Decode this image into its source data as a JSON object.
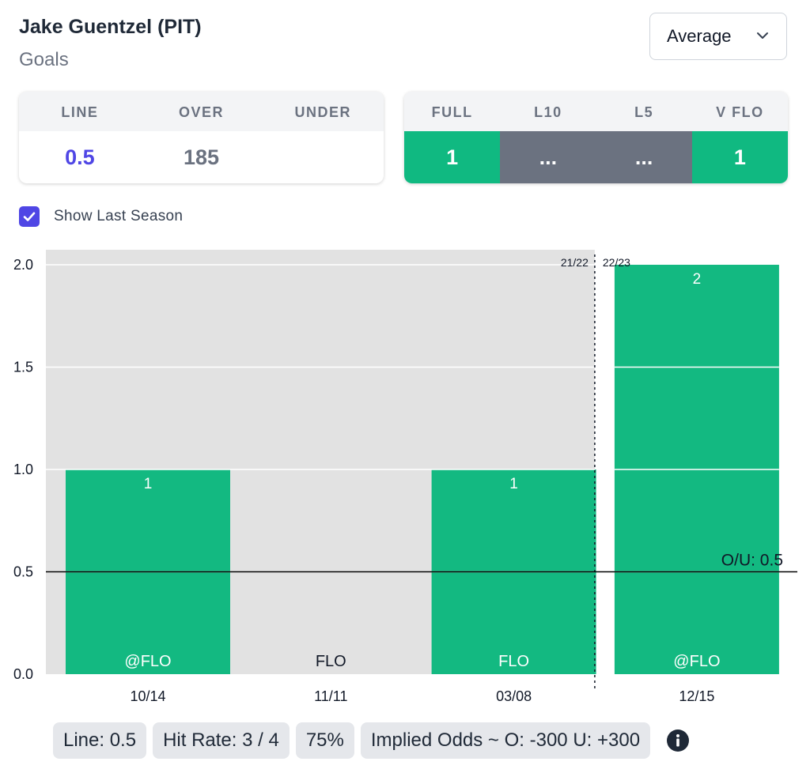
{
  "header": {
    "player": "Jake Guentzel (PIT)",
    "stat": "Goals"
  },
  "select": {
    "value": "Average",
    "icon": "chevron-down-icon"
  },
  "line_card": {
    "headers": [
      "LINE",
      "OVER",
      "UNDER"
    ],
    "values": {
      "line": "0.5",
      "over": "185",
      "under": ""
    },
    "colors": {
      "line": "#4f46e5",
      "over": "#10b981",
      "under": "#ef4444"
    }
  },
  "hit_card": {
    "headers": [
      "FULL",
      "L10",
      "L5",
      "V FLO"
    ],
    "values": [
      "1",
      "...",
      "...",
      "1"
    ],
    "colors": [
      "#10b981",
      "#6b7280",
      "#6b7280",
      "#10b981"
    ]
  },
  "show_last_season": {
    "label": "Show Last Season",
    "checked": true
  },
  "chart_data": {
    "type": "bar",
    "categories": [
      "10/14",
      "11/11",
      "03/08",
      "12/15"
    ],
    "opponents": [
      "@FLO",
      "FLO",
      "FLO",
      "@FLO"
    ],
    "values": [
      1,
      0,
      1,
      2
    ],
    "value_labels": [
      "1",
      "",
      "1",
      "2"
    ],
    "ylim": [
      0,
      2
    ],
    "yticks": [
      "0.0",
      "0.5",
      "1.0",
      "1.5",
      "2.0"
    ],
    "line": {
      "value": 0.5,
      "label": "O/U: 0.5"
    },
    "season_divider": {
      "after_index": 2,
      "left_label": "21/22",
      "right_label": "22/23"
    },
    "colors": {
      "bar": "#13b981",
      "bg_last_season": "#e2e2e2",
      "line": "#000000"
    },
    "grid": true
  },
  "summary": {
    "line": "Line: 0.5",
    "hit_rate": "Hit Rate: 3 / 4",
    "percent": "75%",
    "implied_odds": "Implied Odds ~ O: -300 U: +300",
    "info_icon": "info-icon"
  }
}
